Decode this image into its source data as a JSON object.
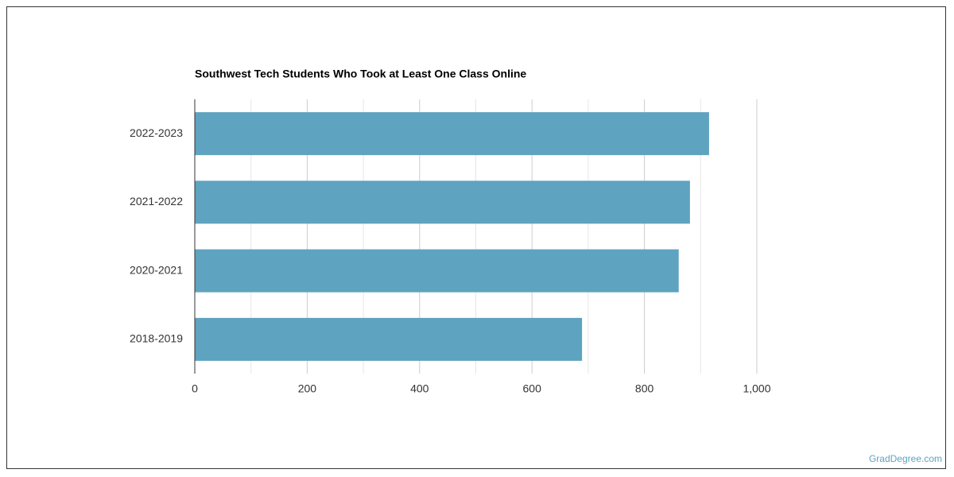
{
  "chart_data": {
    "type": "bar",
    "orientation": "horizontal",
    "title": "Southwest Tech Students Who Took at Least One Class Online",
    "categories": [
      "2022-2023",
      "2021-2022",
      "2020-2021",
      "2018-2019"
    ],
    "values": [
      915,
      881,
      861,
      689
    ],
    "color": "#5ea3bf",
    "xlim": [
      0,
      1000
    ],
    "xticks": [
      0,
      200,
      400,
      600,
      800,
      {
        "value": 1000,
        "label": "1,000"
      }
    ],
    "minor_xticks": [
      100,
      300,
      500,
      700,
      900
    ],
    "grid": true
  },
  "watermark": "GradDegree.com"
}
